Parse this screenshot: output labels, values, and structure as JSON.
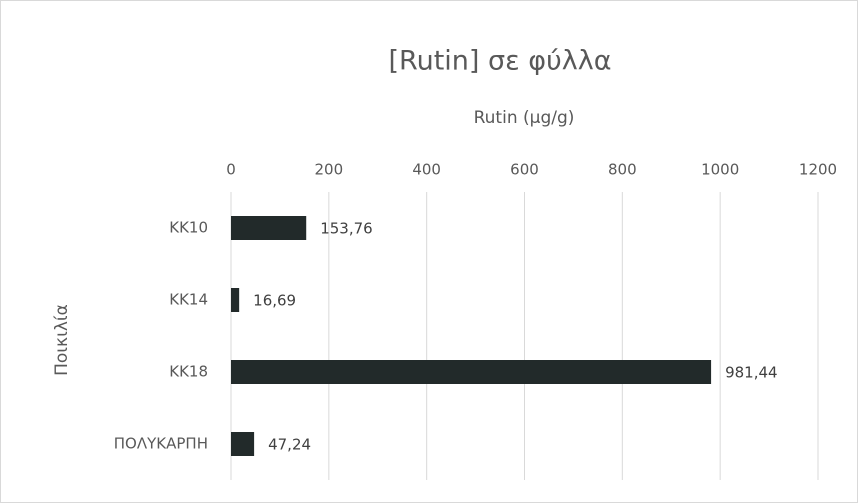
{
  "chart_data": {
    "type": "bar",
    "title": "[Rutin] σε φύλλα",
    "x_label": "Rutin (μg/g)",
    "y_label": "Ποικιλία",
    "categories": [
      "KK10",
      "KK14",
      "KK18",
      "ΠΟΛΥΚΑΡΠΗ"
    ],
    "values": [
      153.76,
      16.69,
      981.44,
      47.24
    ],
    "value_labels": [
      "153,76",
      "16,69",
      "981,44",
      "47,24"
    ],
    "color": "#222a2a",
    "xlim": [
      0,
      1200
    ],
    "xticks": [
      0,
      200,
      400,
      600,
      800,
      1000,
      1200
    ],
    "grid": true
  }
}
